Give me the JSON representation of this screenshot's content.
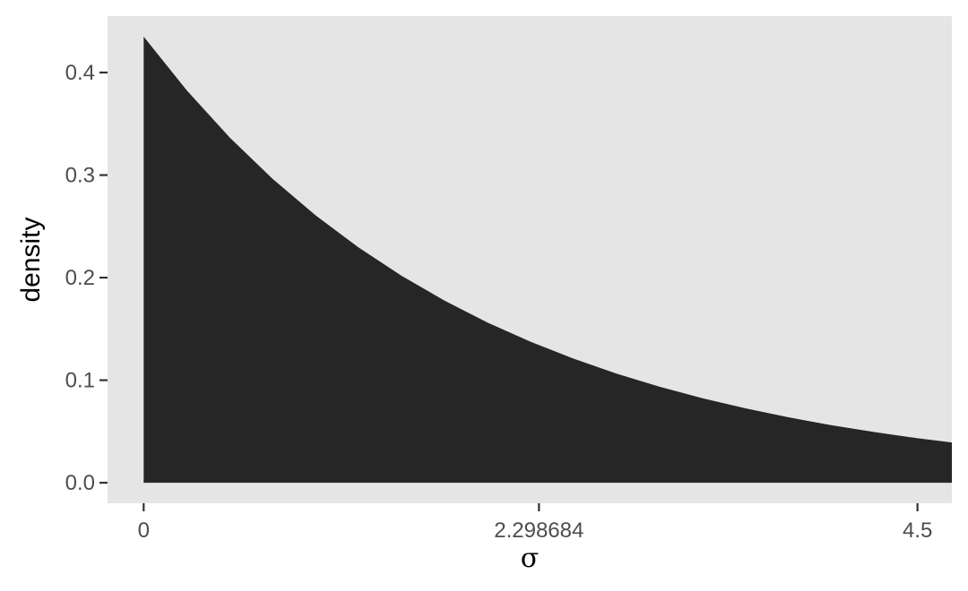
{
  "chart_data": {
    "type": "area",
    "title": "",
    "xlabel": "σ",
    "ylabel": "density",
    "xlim": [
      -0.21,
      4.7
    ],
    "ylim": [
      -0.02,
      0.455
    ],
    "x_ticks": [
      {
        "value": 0,
        "label": "0"
      },
      {
        "value": 2.298684,
        "label": "2.298684"
      },
      {
        "value": 4.5,
        "label": "4.5"
      }
    ],
    "y_ticks": [
      {
        "value": 0.0,
        "label": "0.0"
      },
      {
        "value": 0.1,
        "label": "0.1"
      },
      {
        "value": 0.2,
        "label": "0.2"
      },
      {
        "value": 0.3,
        "label": "0.3"
      },
      {
        "value": 0.4,
        "label": "0.4"
      }
    ],
    "series": [
      {
        "fill": "#262626",
        "x": [
          0,
          0.25,
          0.5,
          0.75,
          1.0,
          1.25,
          1.5,
          1.75,
          2.0,
          2.25,
          2.5,
          2.75,
          3.0,
          3.25,
          3.5,
          3.75,
          4.0,
          4.25,
          4.5,
          4.7
        ],
        "y": [
          0.435,
          0.3827,
          0.3367,
          0.2963,
          0.2607,
          0.2294,
          0.2018,
          0.1776,
          0.1562,
          0.1375,
          0.121,
          0.1064,
          0.0936,
          0.0824,
          0.0725,
          0.0638,
          0.0561,
          0.0494,
          0.0434,
          0.0393
        ]
      }
    ],
    "grid": false,
    "colors": {
      "panel_background": "#e5e5e5",
      "tick_text": "#4d4d4d",
      "tick_mark": "#333333"
    }
  }
}
